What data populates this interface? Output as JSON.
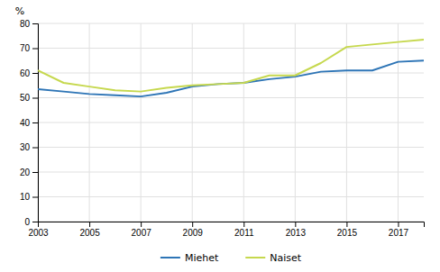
{
  "chart_data": {
    "type": "line",
    "ylabel": "%",
    "x": [
      2003,
      2004,
      2005,
      2006,
      2007,
      2008,
      2009,
      2010,
      2011,
      2012,
      2013,
      2014,
      2015,
      2016,
      2017,
      2018
    ],
    "series": [
      {
        "name": "Miehet",
        "color": "#2E75B6",
        "values": [
          53.5,
          52.5,
          51.5,
          51.0,
          50.5,
          52.0,
          54.5,
          55.5,
          56.0,
          57.5,
          58.5,
          60.5,
          61.0,
          61.0,
          64.5,
          65.0
        ]
      },
      {
        "name": "Naiset",
        "color": "#C6D84E",
        "values": [
          61.0,
          56.0,
          54.5,
          53.0,
          52.5,
          54.0,
          55.0,
          55.5,
          56.0,
          59.0,
          59.0,
          64.0,
          70.5,
          71.5,
          72.5,
          73.5
        ]
      }
    ],
    "xlim": [
      2003,
      2018
    ],
    "xticks": [
      2003,
      2005,
      2007,
      2009,
      2011,
      2013,
      2015,
      2017
    ],
    "ylim": [
      0,
      80
    ],
    "yticks": [
      0,
      10,
      20,
      30,
      40,
      50,
      60,
      70,
      80
    ],
    "grid": true,
    "legend": "bottom"
  }
}
